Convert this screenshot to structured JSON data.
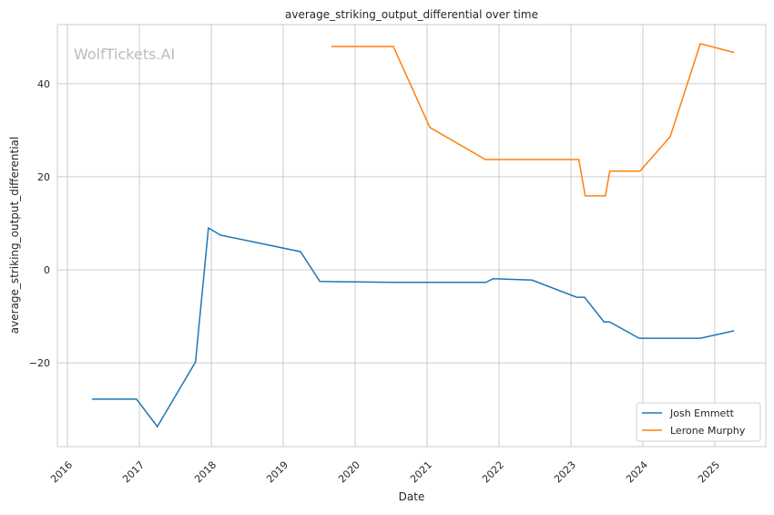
{
  "chart_data": {
    "type": "line",
    "title": "average_striking_output_differential over time",
    "xlabel": "Date",
    "ylabel": "average_striking_output_differential",
    "watermark": "WolfTickets.AI",
    "xlim": [
      2015.86,
      2025.71
    ],
    "ylim": [
      -38,
      52.7
    ],
    "xticks": [
      2016,
      2017,
      2018,
      2019,
      2020,
      2021,
      2022,
      2023,
      2024,
      2025
    ],
    "xtick_labels": [
      "2016",
      "2017",
      "2018",
      "2019",
      "2020",
      "2021",
      "2022",
      "2023",
      "2024",
      "2025"
    ],
    "yticks": [
      -20,
      0,
      20,
      40
    ],
    "ytick_labels": [
      "−20",
      "0",
      "20",
      "40"
    ],
    "grid": true,
    "legend_position": "bottom-right",
    "series": [
      {
        "name": "Josh Emmett",
        "color": "#1f77b4",
        "x": [
          2016.34,
          2016.96,
          2017.25,
          2017.78,
          2017.96,
          2018.13,
          2019.24,
          2019.51,
          2020.51,
          2021.82,
          2021.92,
          2022.46,
          2023.08,
          2023.19,
          2023.46,
          2023.54,
          2023.95,
          2024.8,
          2025.27
        ],
        "y": [
          -27.8,
          -27.8,
          -33.7,
          -19.8,
          9.0,
          7.45,
          3.9,
          -2.5,
          -2.7,
          -2.7,
          -1.9,
          -2.2,
          -5.9,
          -5.9,
          -11.2,
          -11.2,
          -14.7,
          -14.7,
          -13.1
        ]
      },
      {
        "name": "Lerone Murphy",
        "color": "#ff7f0e",
        "x": [
          2019.67,
          2020.53,
          2021.04,
          2021.81,
          2023.11,
          2023.2,
          2023.48,
          2023.54,
          2023.96,
          2024.38,
          2024.8,
          2025.27
        ],
        "y": [
          48.0,
          48.0,
          30.6,
          23.7,
          23.7,
          15.9,
          15.9,
          21.2,
          21.2,
          28.6,
          48.6,
          46.7
        ]
      }
    ]
  }
}
